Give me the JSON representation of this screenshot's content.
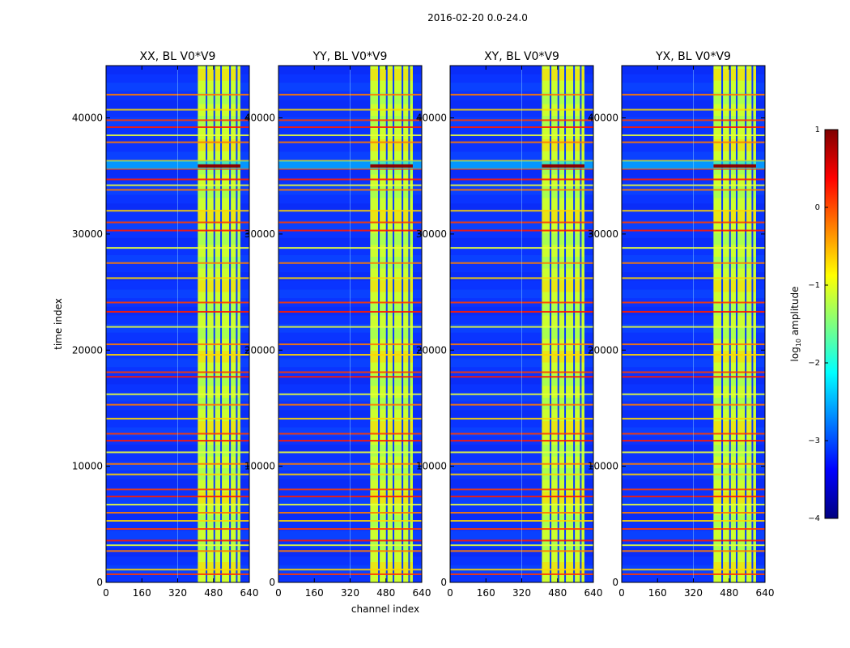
{
  "figure_title": "2016-02-20 0.0-24.0",
  "xlabel": "channel index",
  "ylabel": "time index",
  "colorbar": {
    "label_main": "log",
    "label_sub": "10",
    "label_tail": " amplitude",
    "ticks": [
      "1",
      "0",
      "−1",
      "−2",
      "−3",
      "−4"
    ],
    "range": [
      -4,
      1
    ],
    "colormap": "jet",
    "stops": [
      "#00007f",
      "#0000ff",
      "#007fff",
      "#00ffff",
      "#7fff7f",
      "#ffff00",
      "#ff7f00",
      "#ff0000",
      "#7f0000"
    ]
  },
  "chart_data": {
    "type": "heatmap",
    "x_range": [
      0,
      640
    ],
    "y_range": [
      0,
      44500
    ],
    "x_ticks": [
      0,
      160,
      320,
      480,
      640
    ],
    "y_ticks": [
      0,
      10000,
      20000,
      30000,
      40000
    ],
    "band_channels": [
      410,
      600
    ],
    "band_gaps": [
      [
        445,
        452
      ],
      [
        480,
        486
      ],
      [
        510,
        515
      ],
      [
        550,
        555
      ],
      [
        580,
        585
      ]
    ],
    "flagged_time_rows": [
      700,
      1100,
      2700,
      3200,
      3600,
      4600,
      5300,
      6000,
      6700,
      7400,
      8000,
      9300,
      10200,
      11200,
      12200,
      12800,
      14100,
      15300,
      16200,
      17700,
      18100,
      19600,
      20500,
      22000,
      23300,
      24100,
      26200,
      27500,
      28800,
      30300,
      31000,
      32000,
      33800,
      34200,
      34700,
      35600,
      36300,
      37900,
      38500,
      39200,
      39800,
      40700,
      42000
    ],
    "panels": [
      {
        "title": "XX, BL V0*V9",
        "pol": "XX"
      },
      {
        "title": "YY, BL V0*V9",
        "pol": "YY"
      },
      {
        "title": "XY, BL V0*V9",
        "pol": "XY"
      },
      {
        "title": "YX, BL V0*V9",
        "pol": "YX"
      }
    ]
  }
}
